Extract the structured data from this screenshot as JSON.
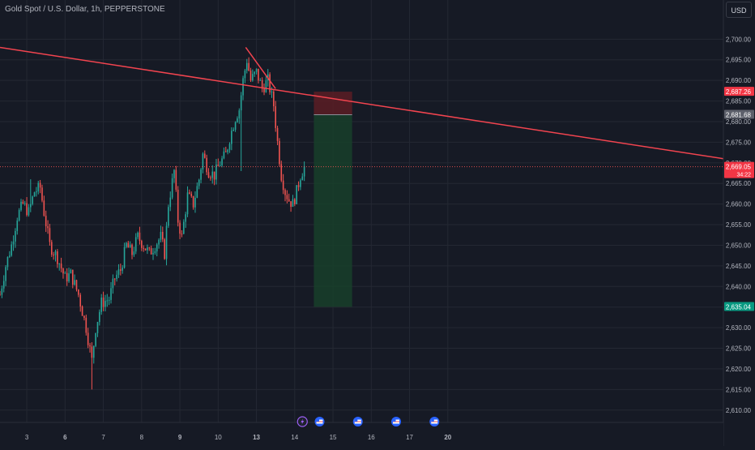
{
  "header": {
    "symbol_title": "Gold Spot / U.S. Dollar, 1h, PEPPERSTONE",
    "currency_label": "USD"
  },
  "colors": {
    "background": "#161a25",
    "grid": "#242833",
    "up": "#26a69a",
    "down": "#ef5350",
    "trendline": "#f2444f",
    "axis_text": "#b2b5be",
    "stop_zone": "#5a1d24",
    "target_zone": "#173f2a",
    "price_label_red": "#f23645",
    "price_label_green": "#089981",
    "price_label_gray": "#5d606b"
  },
  "chart_data": {
    "type": "candlestick",
    "timeframe": "1h",
    "ylim": [
      2607,
      2704
    ],
    "x_range": [
      2.3,
      21.2
    ],
    "y_ticks": [
      2610,
      2615,
      2620,
      2625,
      2630,
      2635,
      2640,
      2645,
      2650,
      2655,
      2660,
      2665,
      2670,
      2675,
      2680,
      2685,
      2690,
      2695,
      2700
    ],
    "x_ticks": [
      {
        "label": "3",
        "day": 3,
        "bold": false
      },
      {
        "label": "6",
        "day": 4,
        "bold": true
      },
      {
        "label": "7",
        "day": 5,
        "bold": false
      },
      {
        "label": "8",
        "day": 6,
        "bold": false
      },
      {
        "label": "9",
        "day": 7,
        "bold": true
      },
      {
        "label": "10",
        "day": 8,
        "bold": false
      },
      {
        "label": "13",
        "day": 9,
        "bold": true
      },
      {
        "label": "14",
        "day": 10,
        "bold": false
      },
      {
        "label": "15",
        "day": 11,
        "bold": false
      },
      {
        "label": "16",
        "day": 12,
        "bold": false
      },
      {
        "label": "17",
        "day": 13,
        "bold": false
      },
      {
        "label": "20",
        "day": 14,
        "bold": true
      }
    ],
    "price_path": [
      [
        2.3,
        2638
      ],
      [
        2.45,
        2645
      ],
      [
        2.6,
        2650
      ],
      [
        2.75,
        2657
      ],
      [
        2.9,
        2660
      ],
      [
        3.05,
        2658
      ],
      [
        3.2,
        2663
      ],
      [
        3.35,
        2664
      ],
      [
        3.45,
        2658
      ],
      [
        3.6,
        2650
      ],
      [
        3.8,
        2647
      ],
      [
        4.0,
        2642
      ],
      [
        4.15,
        2643
      ],
      [
        4.35,
        2638
      ],
      [
        4.55,
        2630
      ],
      [
        4.7,
        2622
      ],
      [
        4.8,
        2630
      ],
      [
        4.95,
        2636
      ],
      [
        5.15,
        2637
      ],
      [
        5.3,
        2642
      ],
      [
        5.45,
        2644
      ],
      [
        5.6,
        2650
      ],
      [
        5.75,
        2648
      ],
      [
        5.9,
        2652
      ],
      [
        6.05,
        2650
      ],
      [
        6.2,
        2648
      ],
      [
        6.35,
        2650
      ],
      [
        6.5,
        2652
      ],
      [
        6.6,
        2648
      ],
      [
        6.7,
        2660
      ],
      [
        6.85,
        2668
      ],
      [
        6.95,
        2656
      ],
      [
        7.05,
        2652
      ],
      [
        7.2,
        2662
      ],
      [
        7.35,
        2660
      ],
      [
        7.5,
        2666
      ],
      [
        7.6,
        2672
      ],
      [
        7.75,
        2668
      ],
      [
        7.9,
        2667
      ],
      [
        8.05,
        2670
      ],
      [
        8.2,
        2672
      ],
      [
        8.3,
        2676
      ],
      [
        8.45,
        2681
      ],
      [
        8.55,
        2683
      ],
      [
        8.65,
        2690
      ],
      [
        8.75,
        2695
      ],
      [
        8.85,
        2690
      ],
      [
        9.0,
        2692
      ],
      [
        9.15,
        2688
      ],
      [
        9.3,
        2690
      ],
      [
        9.45,
        2684
      ],
      [
        9.55,
        2675
      ],
      [
        9.65,
        2667
      ],
      [
        9.75,
        2663
      ],
      [
        9.85,
        2661
      ],
      [
        9.95,
        2660
      ],
      [
        10.05,
        2663
      ],
      [
        10.15,
        2667
      ],
      [
        10.25,
        2669
      ]
    ],
    "volatile_bars": [
      {
        "x": 8.62,
        "low": 2668
      },
      {
        "x": 4.72,
        "low": 2615
      },
      {
        "x": 3.1,
        "high": 2666
      }
    ],
    "trendlines": [
      {
        "name": "main-downtrend",
        "from": [
          2.3,
          2698
        ],
        "to": [
          21.2,
          2671
        ]
      },
      {
        "name": "peak-downtrend",
        "from": [
          8.72,
          2698
        ],
        "to": [
          9.5,
          2688
        ]
      }
    ],
    "current_price_line": 2669.05,
    "position": {
      "type": "short",
      "x_start": 10.5,
      "x_end": 11.5,
      "stop": 2687.26,
      "entry": 2681.68,
      "target": 2635.04
    },
    "axis_labels": [
      {
        "value": 2687.26,
        "text": "2,687.26",
        "color": "#f23645"
      },
      {
        "value": 2681.68,
        "text": "2,681.68",
        "color": "#5d606b"
      },
      {
        "value": 2669.05,
        "text": "2,669.05",
        "subtext": "34:22",
        "color": "#f23645"
      },
      {
        "value": 2635.04,
        "text": "2,635.04",
        "color": "#089981"
      }
    ],
    "events": [
      {
        "day": 10.2,
        "kind": "bolt"
      },
      {
        "day": 10.65,
        "kind": "flag"
      },
      {
        "day": 11.65,
        "kind": "flag"
      },
      {
        "day": 12.65,
        "kind": "flag"
      },
      {
        "day": 13.65,
        "kind": "flag"
      }
    ]
  }
}
